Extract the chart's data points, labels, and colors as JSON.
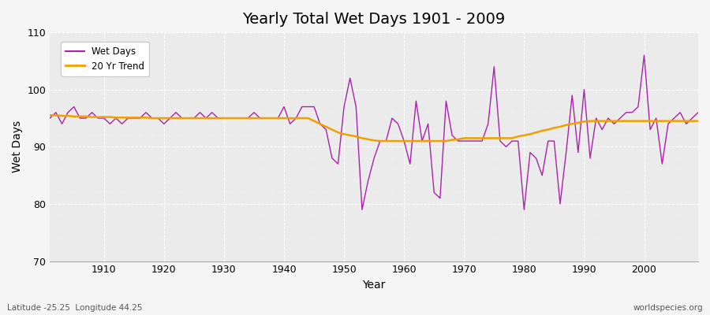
{
  "title": "Yearly Total Wet Days 1901 - 2009",
  "xlabel": "Year",
  "ylabel": "Wet Days",
  "ylim": [
    70,
    110
  ],
  "xlim": [
    1901,
    2009
  ],
  "yticks": [
    70,
    80,
    90,
    100,
    110
  ],
  "xticks": [
    1910,
    1920,
    1930,
    1940,
    1950,
    1960,
    1970,
    1980,
    1990,
    2000
  ],
  "wet_days_color": "#aa22aa",
  "trend_color": "#f0a000",
  "fig_bg_color": "#f5f5f5",
  "plot_bg_color": "#ebebeb",
  "legend_labels": [
    "Wet Days",
    "20 Yr Trend"
  ],
  "footer_left": "Latitude -25.25  Longitude 44.25",
  "footer_right": "worldspecies.org",
  "years": [
    1901,
    1902,
    1903,
    1904,
    1905,
    1906,
    1907,
    1908,
    1909,
    1910,
    1911,
    1912,
    1913,
    1914,
    1915,
    1916,
    1917,
    1918,
    1919,
    1920,
    1921,
    1922,
    1923,
    1924,
    1925,
    1926,
    1927,
    1928,
    1929,
    1930,
    1931,
    1932,
    1933,
    1934,
    1935,
    1936,
    1937,
    1938,
    1939,
    1940,
    1941,
    1942,
    1943,
    1944,
    1945,
    1946,
    1947,
    1948,
    1949,
    1950,
    1951,
    1952,
    1953,
    1954,
    1955,
    1956,
    1957,
    1958,
    1959,
    1960,
    1961,
    1962,
    1963,
    1964,
    1965,
    1966,
    1967,
    1968,
    1969,
    1970,
    1971,
    1972,
    1973,
    1974,
    1975,
    1976,
    1977,
    1978,
    1979,
    1980,
    1981,
    1982,
    1983,
    1984,
    1985,
    1986,
    1987,
    1988,
    1989,
    1990,
    1991,
    1992,
    1993,
    1994,
    1995,
    1996,
    1997,
    1998,
    1999,
    2000,
    2001,
    2002,
    2003,
    2004,
    2005,
    2006,
    2007,
    2008,
    2009
  ],
  "wet_days": [
    95,
    96,
    94,
    96,
    97,
    95,
    95,
    96,
    95,
    95,
    94,
    95,
    94,
    95,
    95,
    95,
    96,
    95,
    95,
    94,
    95,
    96,
    95,
    95,
    95,
    96,
    95,
    96,
    95,
    95,
    95,
    95,
    95,
    95,
    96,
    95,
    95,
    95,
    95,
    97,
    94,
    95,
    97,
    97,
    97,
    94,
    93,
    88,
    87,
    97,
    102,
    97,
    79,
    84,
    88,
    91,
    91,
    95,
    94,
    91,
    87,
    98,
    91,
    94,
    82,
    81,
    98,
    92,
    91,
    91,
    91,
    91,
    91,
    94,
    104,
    91,
    90,
    91,
    91,
    79,
    89,
    88,
    85,
    91,
    91,
    80,
    89,
    99,
    89,
    100,
    88,
    95,
    93,
    95,
    94,
    95,
    96,
    96,
    97,
    106,
    93,
    95,
    87,
    94,
    95,
    96,
    94,
    95,
    96
  ],
  "trend_years": [
    1901,
    1902,
    1903,
    1904,
    1905,
    1906,
    1907,
    1908,
    1909,
    1910,
    1911,
    1912,
    1913,
    1914,
    1915,
    1916,
    1917,
    1918,
    1919,
    1920,
    1921,
    1922,
    1923,
    1924,
    1925,
    1926,
    1927,
    1928,
    1929,
    1930,
    1931,
    1932,
    1933,
    1934,
    1935,
    1936,
    1937,
    1938,
    1939,
    1940,
    1941,
    1942,
    1943,
    1944,
    1945,
    1946,
    1947,
    1948,
    1949,
    1950,
    1951,
    1952,
    1953,
    1954,
    1955,
    1956,
    1957,
    1958,
    1959,
    1960,
    1961,
    1962,
    1963,
    1964,
    1965,
    1966,
    1967,
    1968,
    1969,
    1970,
    1971,
    1972,
    1973,
    1974,
    1975,
    1976,
    1977,
    1978,
    1979,
    1980,
    1981,
    1982,
    1983,
    1984,
    1985,
    1986,
    1987,
    1988,
    1989,
    1990,
    1991,
    1992,
    1993,
    1994,
    1995,
    1996,
    1997,
    1998,
    1999,
    2000,
    2001,
    2002,
    2003,
    2004,
    2005,
    2006,
    2007,
    2008,
    2009
  ],
  "trend_values": [
    95.5,
    95.5,
    95.4,
    95.4,
    95.3,
    95.3,
    95.3,
    95.2,
    95.2,
    95.2,
    95.2,
    95.1,
    95.1,
    95.1,
    95.1,
    95.1,
    95.1,
    95.0,
    95.0,
    95.0,
    95.0,
    95.0,
    95.0,
    95.0,
    95.0,
    95.0,
    95.0,
    95.0,
    95.0,
    95.0,
    95.0,
    95.0,
    95.0,
    95.0,
    95.0,
    95.0,
    95.0,
    95.0,
    95.0,
    95.0,
    95.0,
    95.0,
    95.0,
    95.0,
    94.5,
    94.0,
    93.5,
    93.0,
    92.5,
    92.2,
    92.0,
    91.8,
    91.5,
    91.3,
    91.1,
    91.0,
    91.0,
    91.0,
    91.0,
    91.0,
    91.0,
    91.0,
    91.0,
    91.0,
    91.0,
    91.0,
    91.0,
    91.2,
    91.3,
    91.5,
    91.5,
    91.5,
    91.5,
    91.5,
    91.5,
    91.5,
    91.5,
    91.5,
    91.8,
    92.0,
    92.2,
    92.5,
    92.8,
    93.0,
    93.3,
    93.5,
    93.8,
    94.0,
    94.2,
    94.4,
    94.5,
    94.5,
    94.5,
    94.5,
    94.5,
    94.5,
    94.5,
    94.5,
    94.5,
    94.5,
    94.5,
    94.5,
    94.5,
    94.5,
    94.5,
    94.5,
    94.5,
    94.5,
    94.5
  ]
}
